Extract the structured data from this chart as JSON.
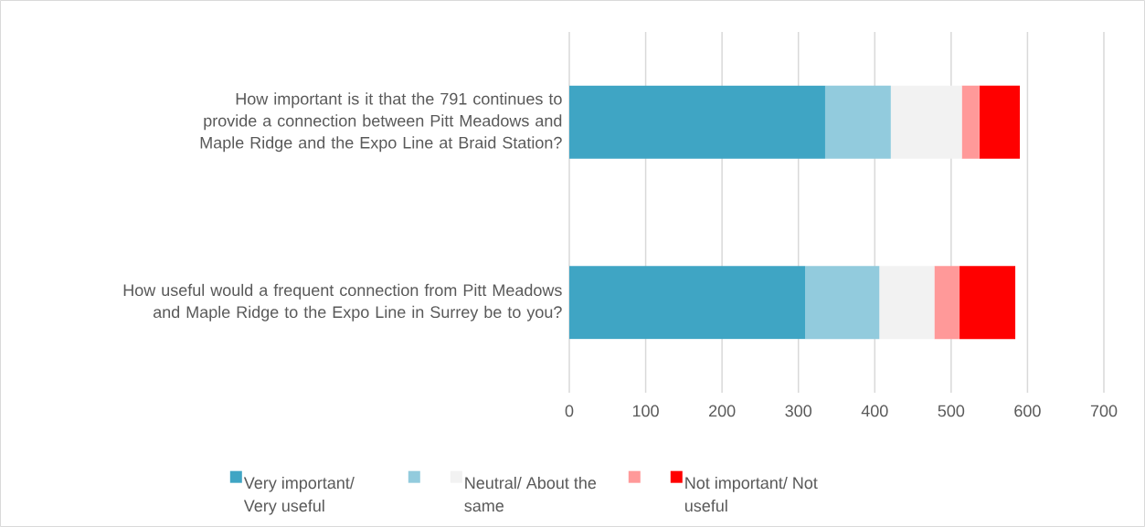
{
  "chart_data": {
    "type": "bar",
    "orientation": "horizontal",
    "stacked": true,
    "categories": [
      "How important is it that the 791 continues to provide a connection between Pitt Meadows and Maple Ridge and the Expo Line at Braid Station?",
      "How useful would a frequent connection from Pitt Meadows and Maple Ridge to the Expo Line in Surrey be to you?"
    ],
    "series": [
      {
        "name": "Very important/ Very useful",
        "color": "#3fa5c4",
        "values": [
          335,
          309
        ]
      },
      {
        "color": "#92cbdd",
        "values": [
          86,
          97
        ]
      },
      {
        "name": "Neutral/ About the same",
        "color": "#f2f2f2",
        "values": [
          93,
          72
        ]
      },
      {
        "color": "#ff9999",
        "values": [
          23,
          33
        ]
      },
      {
        "name": "Not important/ Not useful",
        "color": "#ff0000",
        "values": [
          53,
          73
        ]
      }
    ],
    "xlim": [
      0,
      700
    ],
    "xticks": [
      0,
      100,
      200,
      300,
      400,
      500,
      600,
      700
    ],
    "grid": "x",
    "legend": "bottom"
  }
}
